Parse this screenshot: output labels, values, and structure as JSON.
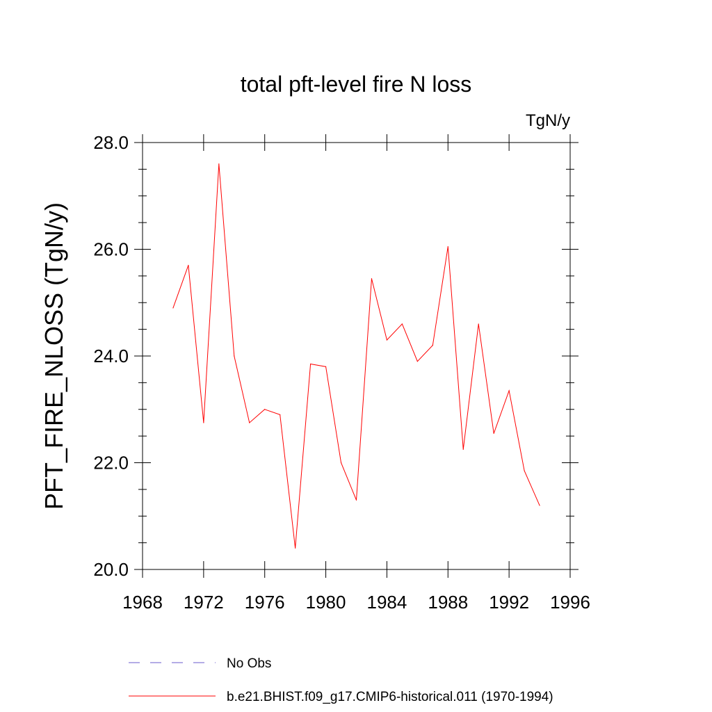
{
  "chart_data": {
    "type": "line",
    "title": "total pft-level fire N loss",
    "units": "TgN/y",
    "ylabel": "PFT_FIRE_NLOSS  (TgN/y)",
    "xlabel": "",
    "xlim": [
      1968,
      1996
    ],
    "ylim": [
      20.0,
      28.0
    ],
    "x_ticks": [
      1968,
      1972,
      1976,
      1980,
      1984,
      1988,
      1992,
      1996
    ],
    "x_tick_labels": [
      "1968",
      "1972",
      "1976",
      "1980",
      "1984",
      "1988",
      "1992",
      "1996"
    ],
    "y_ticks": [
      20,
      22,
      24,
      26,
      28
    ],
    "y_tick_labels": [
      "20.0",
      "22.0",
      "24.0",
      "26.0",
      "28.0"
    ],
    "grid": false,
    "legend_placement": "bottom",
    "series": [
      {
        "name": "b.e21.BHIST.f09_g17.CMIP6-historical.011 (1970-1994)",
        "color": "#ff0000",
        "style": "solid",
        "x": [
          1970,
          1971,
          1972,
          1973,
          1974,
          1975,
          1976,
          1977,
          1978,
          1979,
          1980,
          1981,
          1982,
          1983,
          1984,
          1985,
          1986,
          1987,
          1988,
          1989,
          1990,
          1991,
          1992,
          1993,
          1994
        ],
        "y": [
          24.9,
          25.7,
          22.75,
          27.6,
          24.0,
          22.75,
          23.0,
          22.9,
          20.4,
          23.85,
          23.8,
          22.0,
          21.3,
          25.45,
          24.3,
          24.6,
          23.9,
          24.2,
          26.05,
          22.25,
          24.6,
          22.55,
          23.35,
          21.85,
          21.2
        ]
      },
      {
        "name": "No Obs",
        "color": "#6a5acd",
        "style": "dashed",
        "x": [],
        "y": []
      }
    ]
  }
}
